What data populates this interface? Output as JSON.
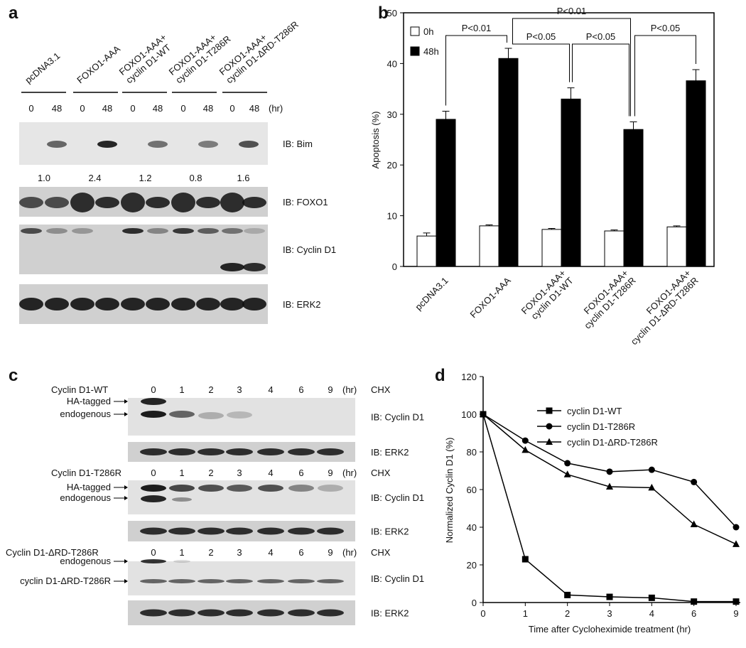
{
  "panel_labels": [
    "a",
    "b",
    "c",
    "d"
  ],
  "panel_a": {
    "lane_groups": [
      [
        "pcDNA3.1"
      ],
      [
        "FOXO1-AAA"
      ],
      [
        "FOXO1-AAA+",
        "cyclin D1-WT"
      ],
      [
        "FOXO1-AAA+",
        "cyclin D1-T286R"
      ],
      [
        "FOXO1-AAA+",
        "cyclin D1-ΔRD-T286R"
      ]
    ],
    "times": [
      "0",
      "48"
    ],
    "time_unit": "(hr)",
    "blots": [
      "IB: Bim",
      "IB: FOXO1",
      "IB: Cyclin D1",
      "IB: ERK2"
    ],
    "bim_quant": [
      "1.0",
      "2.4",
      "1.2",
      "0.8",
      "1.6"
    ]
  },
  "panel_c": {
    "time_points": [
      "0",
      "1",
      "2",
      "3",
      "4",
      "6",
      "9"
    ],
    "time_unit": "(hr)",
    "treatment": "CHX",
    "blocks": [
      {
        "title": "Cyclin D1-WT",
        "band_labels": [
          "HA-tagged",
          "endogenous"
        ],
        "blots": [
          "IB: Cyclin D1",
          "IB: ERK2"
        ]
      },
      {
        "title": "Cyclin D1-T286R",
        "band_labels": [
          "HA-tagged",
          "endogenous"
        ],
        "blots": [
          "IB: Cyclin D1",
          "IB: ERK2"
        ]
      },
      {
        "title": "Cyclin D1-ΔRD-T286R",
        "band_labels": [
          "endogenous",
          "cyclin D1-ΔRD-T286R"
        ],
        "blots": [
          "IB: Cyclin D1",
          "IB: ERK2"
        ]
      }
    ]
  },
  "chart_data": [
    {
      "type": "bar",
      "y_label": "Apoptosis (%)",
      "categories": [
        [
          "pcDNA3.1"
        ],
        [
          "FOXO1-AAA"
        ],
        [
          "FOXO1-AAA+",
          "cyclin D1-WT"
        ],
        [
          "FOXO1-AAA+",
          "cyclin D1-T286R"
        ],
        [
          "FOXO1-AAA+",
          "cyclin D1-ΔRD-T286R"
        ]
      ],
      "series": [
        {
          "name": "0h",
          "color": "#ffffff",
          "values": [
            6,
            8,
            7.3,
            7,
            7.8
          ],
          "errors": [
            0.6,
            0.2,
            0.2,
            0.2,
            0.2
          ]
        },
        {
          "name": "48h",
          "color": "#000000",
          "values": [
            29,
            41,
            33,
            27,
            36.6
          ],
          "errors": [
            1.6,
            2,
            2.2,
            1.5,
            2.2
          ]
        }
      ],
      "ylim": [
        0,
        50
      ],
      "yticks": [
        0,
        10,
        20,
        30,
        40,
        50
      ],
      "annotations": [
        "P<0.01",
        "P<0.01",
        "P<0.05",
        "P<0.05",
        "P<0.05"
      ]
    },
    {
      "type": "line",
      "x_label": "Time after Cycloheximide treatment (hr)",
      "y_label": "Normalized Cyclin D1 (%)",
      "categories": [
        "0",
        "1",
        "2",
        "3",
        "4",
        "6",
        "9"
      ],
      "series": [
        {
          "name": "cyclin D1-WT",
          "color": "#000000",
          "marker": "square",
          "values": [
            100,
            23,
            4,
            3,
            2.5,
            0.5,
            0.5
          ]
        },
        {
          "name": "cyclin D1-T286R",
          "color": "#000000",
          "marker": "circle",
          "values": [
            100,
            86,
            74,
            69.5,
            70.5,
            64,
            40
          ]
        },
        {
          "name": "cyclin D1-ΔRD-T286R",
          "color": "#000000",
          "marker": "triangle",
          "values": [
            100,
            81,
            68,
            61.5,
            61,
            41.5,
            31
          ]
        }
      ],
      "ylim": [
        0,
        120
      ],
      "yticks": [
        0,
        20,
        40,
        60,
        80,
        100,
        120
      ]
    }
  ]
}
